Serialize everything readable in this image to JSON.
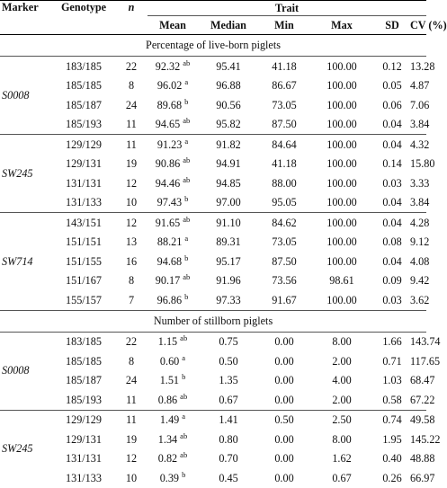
{
  "header": {
    "marker": "Marker",
    "genotype": "Genotype",
    "n": "n",
    "trait": "Trait",
    "mean": "Mean",
    "median": "Median",
    "min": "Min",
    "max": "Max",
    "sd": "SD",
    "cv": "CV (%)"
  },
  "sections": [
    {
      "title": "Percentage of live-born piglets",
      "groups": [
        {
          "marker": "S0008",
          "rows": [
            {
              "genotype": "183/185",
              "n": "22",
              "mean": "92.32",
              "sup": "ab",
              "median": "95.41",
              "min": "41.18",
              "max": "100.00",
              "sd": "0.12",
              "cv": "13.28"
            },
            {
              "genotype": "185/185",
              "n": "8",
              "mean": "96.02",
              "sup": "a",
              "median": "96.88",
              "min": "86.67",
              "max": "100.00",
              "sd": "0.05",
              "cv": "4.87"
            },
            {
              "genotype": "185/187",
              "n": "24",
              "mean": "89.68",
              "sup": "b",
              "median": "90.56",
              "min": "73.05",
              "max": "100.00",
              "sd": "0.06",
              "cv": "7.06"
            },
            {
              "genotype": "185/193",
              "n": "11",
              "mean": "94.65",
              "sup": "ab",
              "median": "95.82",
              "min": "87.50",
              "max": "100.00",
              "sd": "0.04",
              "cv": "3.84"
            }
          ]
        },
        {
          "marker": "SW245",
          "rows": [
            {
              "genotype": "129/129",
              "n": "11",
              "mean": "91.23",
              "sup": "a",
              "median": "91.82",
              "min": "84.64",
              "max": "100.00",
              "sd": "0.04",
              "cv": "4.32"
            },
            {
              "genotype": "129/131",
              "n": "19",
              "mean": "90.86",
              "sup": "ab",
              "median": "94.91",
              "min": "41.18",
              "max": "100.00",
              "sd": "0.14",
              "cv": "15.80"
            },
            {
              "genotype": "131/131",
              "n": "12",
              "mean": "94.46",
              "sup": "ab",
              "median": "94.85",
              "min": "88.00",
              "max": "100.00",
              "sd": "0.03",
              "cv": "3.33"
            },
            {
              "genotype": "131/133",
              "n": "10",
              "mean": "97.43",
              "sup": "b",
              "median": "97.00",
              "min": "95.05",
              "max": "100.00",
              "sd": "0.04",
              "cv": "3.84"
            }
          ]
        },
        {
          "marker": "SW714",
          "rows": [
            {
              "genotype": "143/151",
              "n": "12",
              "mean": "91.65",
              "sup": "ab",
              "median": "91.10",
              "min": "84.62",
              "max": "100.00",
              "sd": "0.04",
              "cv": "4.28"
            },
            {
              "genotype": "151/151",
              "n": "13",
              "mean": "88.21",
              "sup": "a",
              "median": "89.31",
              "min": "73.05",
              "max": "100.00",
              "sd": "0.08",
              "cv": "9.12"
            },
            {
              "genotype": "151/155",
              "n": "16",
              "mean": "94.68",
              "sup": "b",
              "median": "95.17",
              "min": "87.50",
              "max": "100.00",
              "sd": "0.04",
              "cv": "4.08"
            },
            {
              "genotype": "151/167",
              "n": "8",
              "mean": "90.17",
              "sup": "ab",
              "median": "91.96",
              "min": "73.56",
              "max": "98.61",
              "sd": "0.09",
              "cv": "9.42"
            },
            {
              "genotype": "155/157",
              "n": "7",
              "mean": "96.86",
              "sup": "b",
              "median": "97.33",
              "min": "91.67",
              "max": "100.00",
              "sd": "0.03",
              "cv": "3.62"
            }
          ]
        }
      ]
    },
    {
      "title": "Number of stillborn piglets",
      "groups": [
        {
          "marker": "S0008",
          "rows": [
            {
              "genotype": "183/185",
              "n": "22",
              "mean": "1.15",
              "sup": "ab",
              "median": "0.75",
              "min": "0.00",
              "max": "8.00",
              "sd": "1.66",
              "cv": "143.74"
            },
            {
              "genotype": "185/185",
              "n": "8",
              "mean": "0.60",
              "sup": "a",
              "median": "0.50",
              "min": "0.00",
              "max": "2.00",
              "sd": "0.71",
              "cv": "117.65"
            },
            {
              "genotype": "185/187",
              "n": "24",
              "mean": "1.51",
              "sup": "b",
              "median": "1.35",
              "min": "0.00",
              "max": "4.00",
              "sd": "1.03",
              "cv": "68.47"
            },
            {
              "genotype": "185/193",
              "n": "11",
              "mean": "0.86",
              "sup": "ab",
              "median": "0.67",
              "min": "0.00",
              "max": "2.00",
              "sd": "0.58",
              "cv": "67.22"
            }
          ]
        },
        {
          "marker": "SW245",
          "rows": [
            {
              "genotype": "129/129",
              "n": "11",
              "mean": "1.49",
              "sup": "a",
              "median": "1.41",
              "min": "0.50",
              "max": "2.50",
              "sd": "0.74",
              "cv": "49.58"
            },
            {
              "genotype": "129/131",
              "n": "19",
              "mean": "1.34",
              "sup": "ab",
              "median": "0.80",
              "min": "0.00",
              "max": "8.00",
              "sd": "1.95",
              "cv": "145.22"
            },
            {
              "genotype": "131/131",
              "n": "12",
              "mean": "0.82",
              "sup": "ab",
              "median": "0.70",
              "min": "0.00",
              "max": "1.62",
              "sd": "0.40",
              "cv": "48.88"
            },
            {
              "genotype": "131/133",
              "n": "10",
              "mean": "0.39",
              "sup": "b",
              "median": "0.45",
              "min": "0.00",
              "max": "0.67",
              "sd": "0.26",
              "cv": "66.97"
            }
          ]
        }
      ]
    }
  ]
}
